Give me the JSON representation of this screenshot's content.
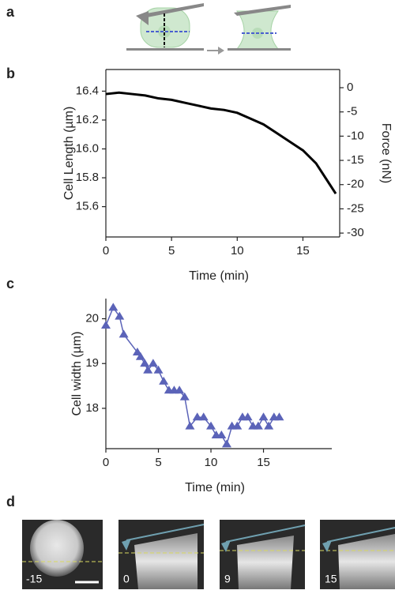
{
  "panel_labels": [
    "a",
    "b",
    "c",
    "d"
  ],
  "chart_data": [
    {
      "type": "line",
      "x_label": "Time (min)",
      "y_label": "Cell Length (µm)",
      "y2_label": "Force (nN)",
      "xlim": [
        0,
        17.8
      ],
      "xticks": [
        0,
        5,
        10,
        15
      ],
      "ylim": [
        15.39,
        16.55
      ],
      "yticks": [
        15.6,
        15.8,
        {
          "value": 16,
          "label": "16.0"
        },
        16.2,
        16.4
      ],
      "y2lim": [
        -30.8,
        3.75
      ],
      "y2ticks": [
        -30,
        -25,
        -20,
        -15,
        -10,
        -5,
        0
      ],
      "series": [
        {
          "color": "#000000",
          "x": [
            0,
            1,
            2,
            3,
            4,
            5,
            6,
            7,
            8,
            9,
            10,
            11,
            12,
            13,
            14,
            15,
            16,
            17,
            17.5
          ],
          "values": [
            16.38,
            16.39,
            16.38,
            16.37,
            16.35,
            16.34,
            16.32,
            16.3,
            16.28,
            16.27,
            16.25,
            16.21,
            16.17,
            16.11,
            16.05,
            15.99,
            15.9,
            15.76,
            15.69
          ]
        }
      ]
    },
    {
      "type": "line",
      "x_label": "Time (min)",
      "y_label": "Cell width (µm)",
      "xlim": [
        0,
        21.5
      ],
      "xticks": [
        0,
        5,
        10,
        15
      ],
      "ylim": [
        17.1,
        20.45
      ],
      "yticks": [
        18,
        19,
        20
      ],
      "series": [
        {
          "color": "#5b63b8",
          "marker": "triangle",
          "x": [
            0,
            0.7,
            1.3,
            1.7,
            3.0,
            3.3,
            3.7,
            4.0,
            4.5,
            5.0,
            5.5,
            6.0,
            6.5,
            7.0,
            7.5,
            8.0,
            8.7,
            9.3,
            10.0,
            10.5,
            11.0,
            11.5,
            12.0,
            12.5,
            13.0,
            13.5,
            14.0,
            14.5,
            15.0,
            15.5,
            16.0,
            16.5
          ],
          "values": [
            19.85,
            20.25,
            20.05,
            19.65,
            19.25,
            19.15,
            19.0,
            18.85,
            19.0,
            18.85,
            18.6,
            18.4,
            18.4,
            18.4,
            18.25,
            17.6,
            17.8,
            17.8,
            17.6,
            17.4,
            17.4,
            17.2,
            17.6,
            17.6,
            17.8,
            17.8,
            17.6,
            17.6,
            17.8,
            17.6,
            17.8,
            17.8
          ]
        }
      ]
    }
  ],
  "image_labels": [
    "-15",
    "0",
    "9",
    "15"
  ]
}
